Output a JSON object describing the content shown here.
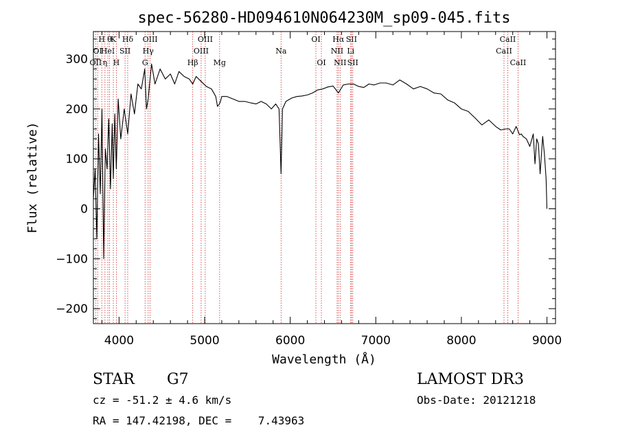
{
  "chart_data": {
    "type": "line",
    "title": "spec-56280-HD094610N064230M_sp09-045.fits",
    "xlabel": "Wavelength (Å)",
    "ylabel": "Flux (relative)",
    "xlim": [
      3700,
      9100
    ],
    "ylim": [
      -230,
      355
    ],
    "grid": false,
    "xticks": [
      4000,
      5000,
      6000,
      7000,
      8000,
      9000
    ],
    "yticks": [
      -200,
      -100,
      0,
      100,
      200,
      300
    ],
    "series": [
      {
        "x": [
          3700,
          3720,
          3740,
          3760,
          3780,
          3800,
          3820,
          3840,
          3860,
          3880,
          3900,
          3920,
          3933,
          3950,
          3968,
          3990,
          4020,
          4060,
          4101,
          4140,
          4180,
          4220,
          4260,
          4300,
          4320,
          4340,
          4380,
          4420,
          4480,
          4540,
          4600,
          4650,
          4700,
          4760,
          4820,
          4861,
          4900,
          4960,
          5020,
          5080,
          5130,
          5150,
          5172,
          5185,
          5200,
          5260,
          5330,
          5400,
          5470,
          5540,
          5600,
          5660,
          5720,
          5780,
          5830,
          5870,
          5893,
          5910,
          5950,
          6020,
          6080,
          6140,
          6200,
          6260,
          6320,
          6380,
          6440,
          6500,
          6563,
          6620,
          6680,
          6740,
          6800,
          6860,
          6920,
          6980,
          7050,
          7120,
          7200,
          7280,
          7360,
          7440,
          7520,
          7600,
          7680,
          7760,
          7840,
          7920,
          8000,
          8080,
          8160,
          8240,
          8320,
          8400,
          8460,
          8520,
          8560,
          8600,
          8640,
          8680,
          8700,
          8720,
          8760,
          8800,
          8840,
          8860,
          8880,
          8900,
          8920,
          8950,
          8970,
          8990,
          9000
        ],
        "y": [
          20,
          80,
          -60,
          150,
          30,
          200,
          -100,
          120,
          80,
          180,
          40,
          170,
          60,
          190,
          80,
          220,
          140,
          200,
          150,
          230,
          190,
          250,
          240,
          280,
          200,
          220,
          290,
          250,
          280,
          260,
          270,
          250,
          275,
          265,
          260,
          250,
          265,
          255,
          245,
          240,
          225,
          205,
          210,
          215,
          225,
          225,
          220,
          215,
          215,
          212,
          210,
          215,
          210,
          200,
          210,
          200,
          70,
          200,
          215,
          222,
          225,
          226,
          228,
          232,
          238,
          240,
          244,
          246,
          232,
          248,
          250,
          250,
          245,
          243,
          250,
          248,
          252,
          252,
          248,
          258,
          250,
          240,
          245,
          240,
          232,
          230,
          218,
          212,
          200,
          195,
          182,
          168,
          178,
          165,
          158,
          160,
          160,
          150,
          165,
          148,
          150,
          145,
          140,
          125,
          150,
          90,
          140,
          130,
          70,
          145,
          110,
          60,
          0
        ]
      }
    ],
    "line_markers": [
      {
        "wavelength": 3727,
        "row": 2,
        "label": "OII"
      },
      {
        "wavelength": 3750,
        "row": 1,
        "label": "OI"
      },
      {
        "wavelength": 3798,
        "row": 0,
        "label": "H"
      },
      {
        "wavelength": 3835,
        "row": 2,
        "label": "η"
      },
      {
        "wavelength": 3869,
        "row": 1,
        "label": "HeI"
      },
      {
        "wavelength": 3889,
        "row": 0,
        "label": "θ"
      },
      {
        "wavelength": 3933,
        "row": 0,
        "label": "K"
      },
      {
        "wavelength": 3968,
        "row": 2,
        "label": "H"
      },
      {
        "wavelength": 4070,
        "row": 1,
        "label": "SII"
      },
      {
        "wavelength": 4101,
        "row": 0,
        "label": "Hδ"
      },
      {
        "wavelength": 4304,
        "row": 2,
        "label": "G"
      },
      {
        "wavelength": 4340,
        "row": 1,
        "label": "Hγ"
      },
      {
        "wavelength": 4363,
        "row": 0,
        "label": "OIII"
      },
      {
        "wavelength": 4861,
        "row": 2,
        "label": "Hβ"
      },
      {
        "wavelength": 4959,
        "row": 1,
        "label": "OIII"
      },
      {
        "wavelength": 5007,
        "row": 0,
        "label": "OIII"
      },
      {
        "wavelength": 5175,
        "row": 2,
        "label": "Mg"
      },
      {
        "wavelength": 5893,
        "row": 1,
        "label": "Na"
      },
      {
        "wavelength": 6300,
        "row": 0,
        "label": "OI"
      },
      {
        "wavelength": 6364,
        "row": 2,
        "label": "OI"
      },
      {
        "wavelength": 6548,
        "row": 1,
        "label": "NII"
      },
      {
        "wavelength": 6563,
        "row": 0,
        "label": "Hα"
      },
      {
        "wavelength": 6583,
        "row": 2,
        "label": "NII"
      },
      {
        "wavelength": 6707,
        "row": 1,
        "label": "Li"
      },
      {
        "wavelength": 6716,
        "row": 0,
        "label": "SII"
      },
      {
        "wavelength": 6731,
        "row": 2,
        "label": "SII"
      },
      {
        "wavelength": 8498,
        "row": 1,
        "label": "CaII"
      },
      {
        "wavelength": 8542,
        "row": 0,
        "label": "CaII"
      },
      {
        "wavelength": 8662,
        "row": 2,
        "label": "CaII"
      }
    ],
    "marker_color": "#cc2222"
  },
  "info": {
    "object_class": "STAR",
    "subclass": "G7",
    "survey": "LAMOST DR3",
    "velocity": "cz = -51.2 ± 4.6 km/s",
    "obs_date": "Obs-Date: 20121218",
    "coords": "RA = 147.42198, DEC =    7.43963"
  }
}
